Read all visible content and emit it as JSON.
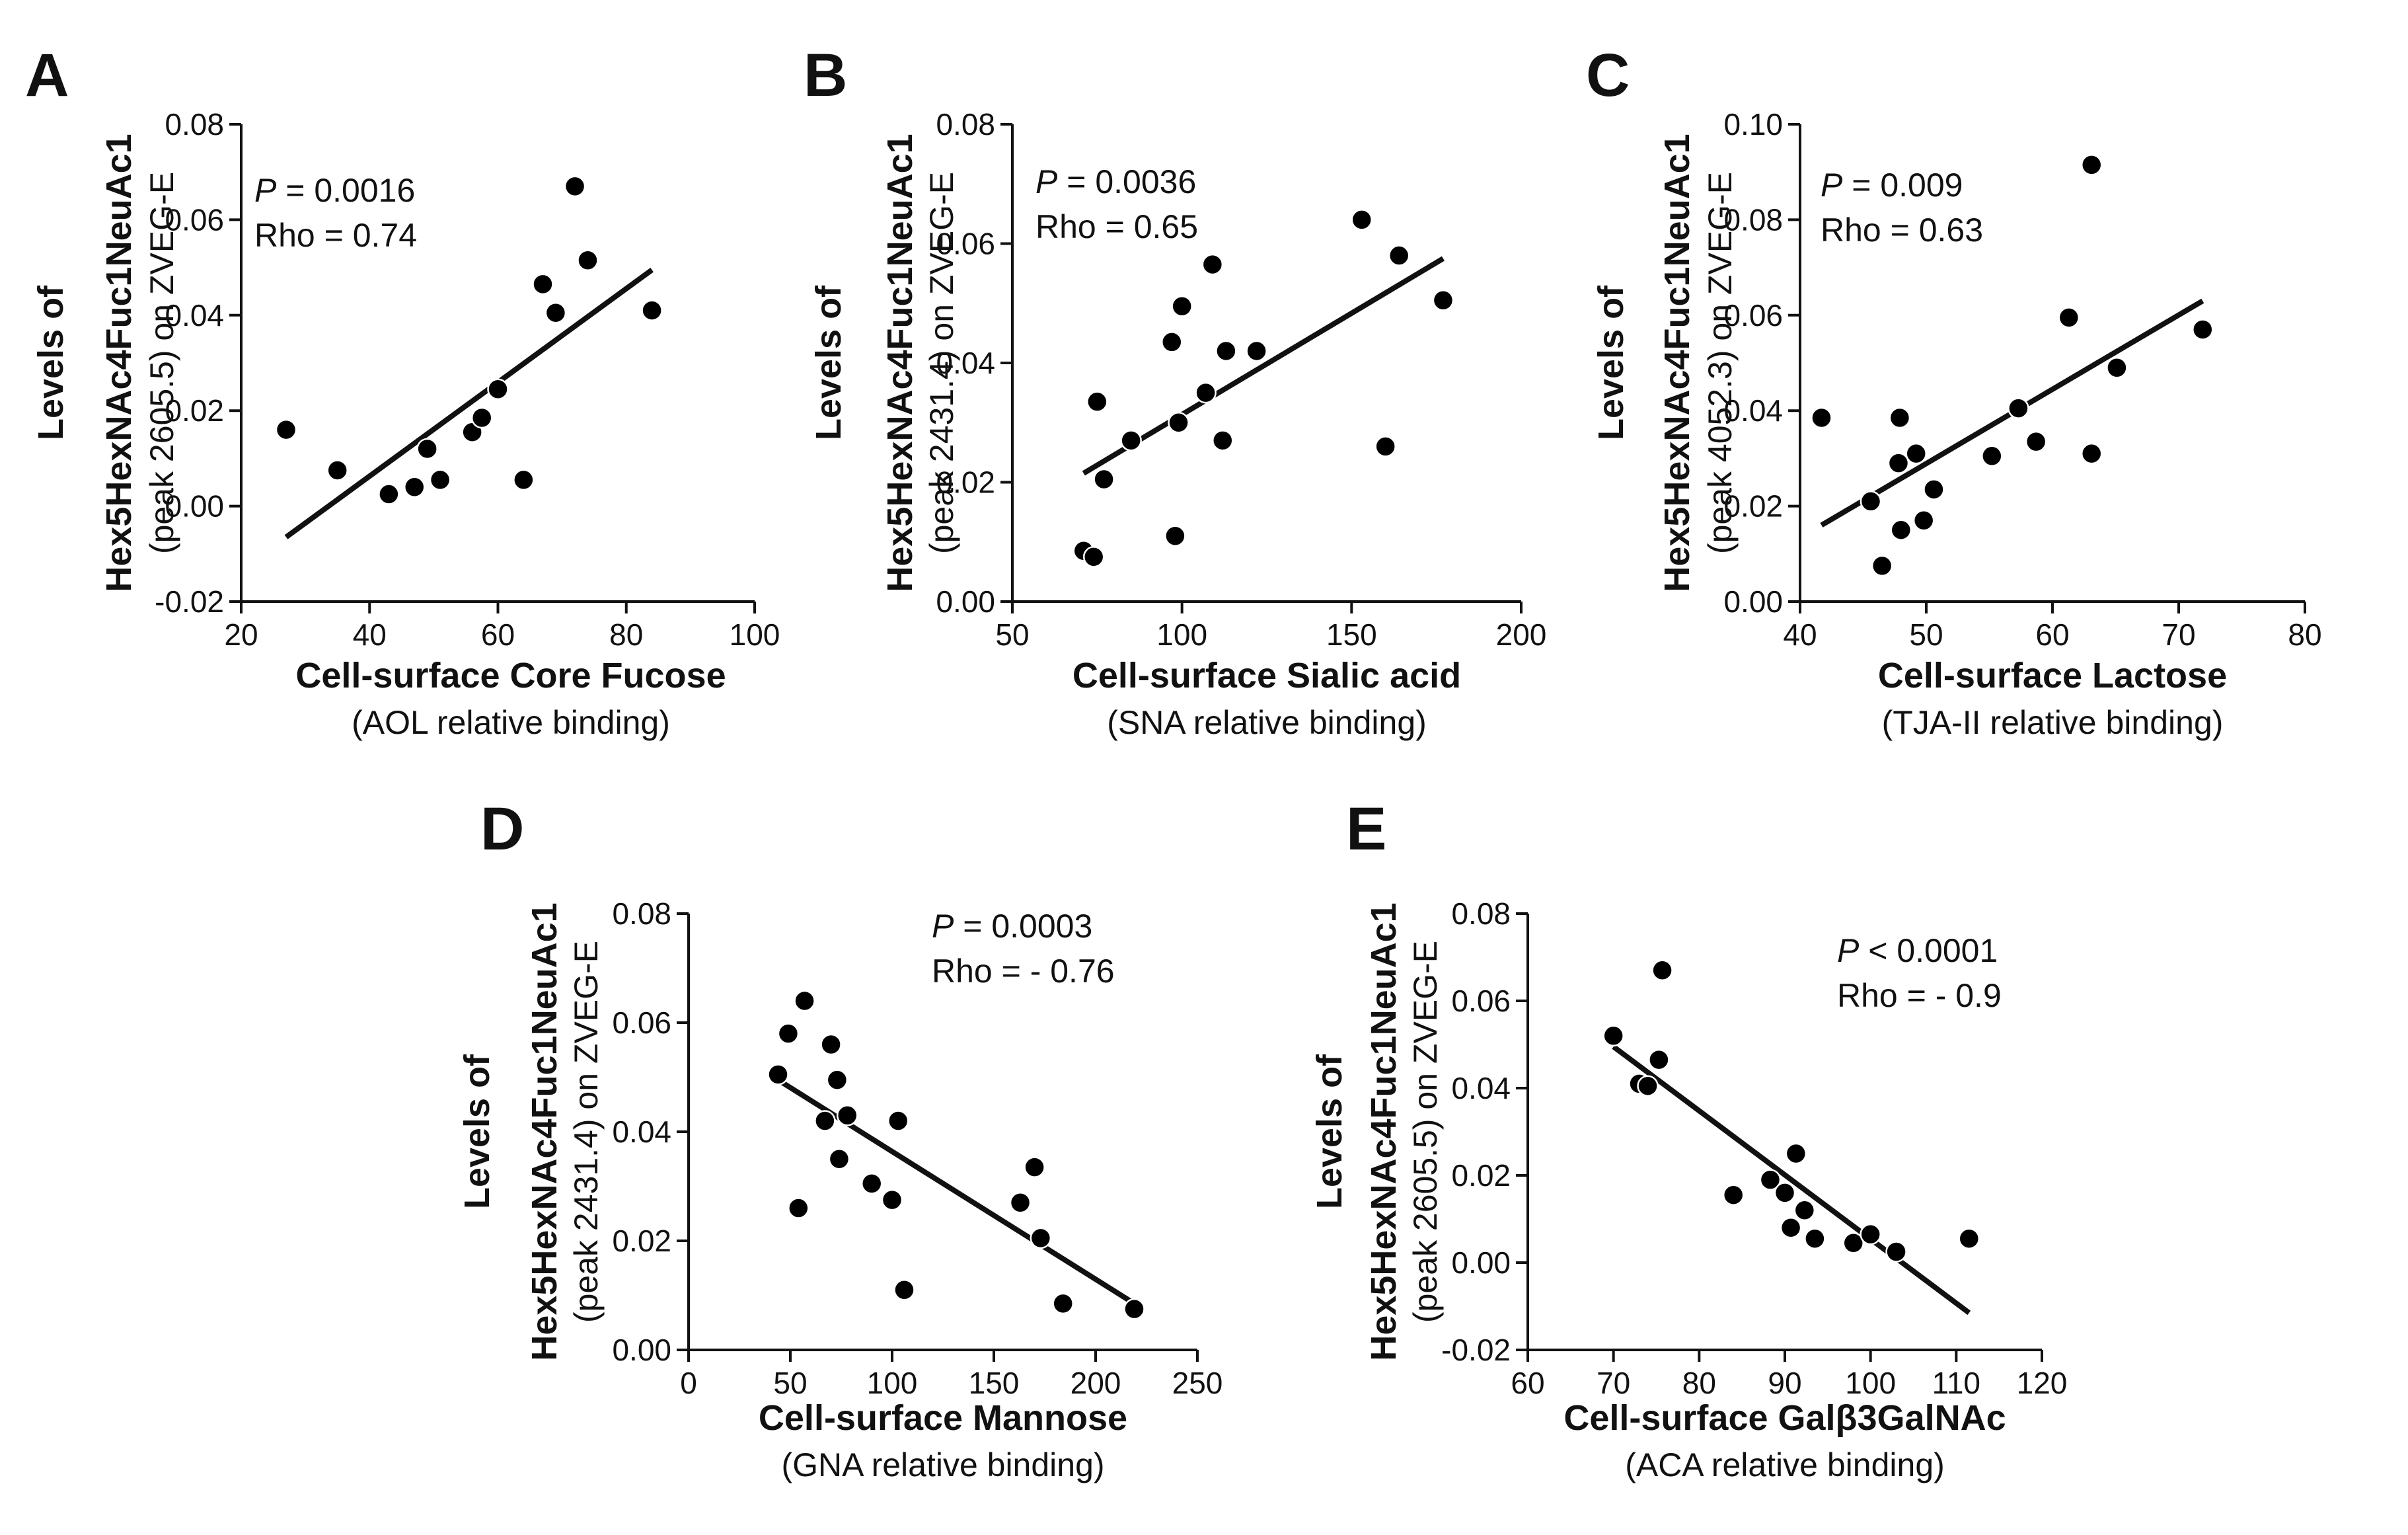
{
  "colors": {
    "ink": "#111111",
    "point": "#000000",
    "background": "#ffffff"
  },
  "chart_data": [
    {
      "type": "scatter",
      "panel": "A",
      "p_prefix": "P",
      "p_text": " = 0.0016",
      "rho_text": "Rho = 0.74",
      "xlabel": "Cell-surface Core Fucose",
      "xsublabel": "(AOL relative binding)",
      "ylabel_lines": [
        "Levels of",
        "Hex5HexNAc4Fuc1NeuAc1",
        "(peak 2605.5) on ZVEG-E"
      ],
      "xlim": [
        20,
        100
      ],
      "ylim": [
        -0.02,
        0.08
      ],
      "xticks": [
        20,
        40,
        60,
        80,
        100
      ],
      "yticks": [
        -0.02,
        0.0,
        0.02,
        0.04,
        0.06,
        0.08
      ],
      "ytick_labels": [
        "-0.02",
        "0.00",
        "0.02",
        "0.04",
        "0.06",
        "0.08"
      ],
      "x": [
        27,
        35,
        43,
        47,
        49,
        51,
        56,
        57.5,
        60,
        64,
        67,
        69,
        72,
        74,
        84
      ],
      "y": [
        0.016,
        0.0075,
        0.0025,
        0.004,
        0.012,
        0.0055,
        0.0155,
        0.0185,
        0.0245,
        0.0055,
        0.0465,
        0.0405,
        0.067,
        0.0515,
        0.041
      ],
      "fit": {
        "x": [
          27,
          84
        ],
        "y": [
          -0.0065,
          0.0495
        ]
      }
    },
    {
      "type": "scatter",
      "panel": "B",
      "p_prefix": "P",
      "p_text": " = 0.0036",
      "rho_text": "Rho = 0.65",
      "xlabel": "Cell-surface Sialic acid",
      "xsublabel": "(SNA relative binding)",
      "ylabel_lines": [
        "Levels of",
        "Hex5HexNAc4Fuc1NeuAc1",
        "(peak 2431.4) on ZVEG-E"
      ],
      "xlim": [
        50,
        200
      ],
      "ylim": [
        0.0,
        0.08
      ],
      "xticks": [
        50,
        100,
        150,
        200
      ],
      "yticks": [
        0.0,
        0.02,
        0.04,
        0.06,
        0.08
      ],
      "ytick_labels": [
        "0.00",
        "0.02",
        "0.04",
        "0.06",
        "0.08"
      ],
      "x": [
        71,
        74,
        75,
        77,
        85,
        97,
        98,
        99,
        100,
        107,
        109,
        113,
        112,
        122,
        153,
        160,
        164,
        177
      ],
      "y": [
        0.0085,
        0.0075,
        0.0335,
        0.0205,
        0.027,
        0.0435,
        0.011,
        0.03,
        0.0495,
        0.035,
        0.0565,
        0.042,
        0.027,
        0.042,
        0.064,
        0.026,
        0.058,
        0.0505
      ],
      "fit": {
        "x": [
          71,
          177
        ],
        "y": [
          0.0215,
          0.0575
        ]
      }
    },
    {
      "type": "scatter",
      "panel": "C",
      "p_prefix": "P",
      "p_text": " = 0.009",
      "rho_text": "Rho = 0.63",
      "xlabel": "Cell-surface Lactose",
      "xsublabel": "(TJA-II relative binding)",
      "ylabel_lines": [
        "Levels of",
        "Hex5HexNAc4Fuc1NeuAc1",
        "(peak 4052.3) on ZVEG-E"
      ],
      "xlim": [
        40,
        80
      ],
      "ylim": [
        0.0,
        0.1
      ],
      "xticks": [
        40,
        50,
        60,
        70,
        80
      ],
      "yticks": [
        0.0,
        0.02,
        0.04,
        0.06,
        0.08,
        0.1
      ],
      "ytick_labels": [
        "0.00",
        "0.02",
        "0.04",
        "0.06",
        "0.08",
        "0.10"
      ],
      "x": [
        41.7,
        45.6,
        46.5,
        47.8,
        47.9,
        48,
        49.2,
        49.8,
        50.6,
        55.2,
        57.3,
        58.7,
        61.3,
        63.1,
        63.1,
        65.1,
        71.9
      ],
      "y": [
        0.0385,
        0.021,
        0.0075,
        0.029,
        0.0385,
        0.015,
        0.031,
        0.017,
        0.0235,
        0.0305,
        0.0405,
        0.0335,
        0.0595,
        0.031,
        0.0915,
        0.049,
        0.057
      ],
      "fit": {
        "x": [
          41.7,
          71.9
        ],
        "y": [
          0.016,
          0.063
        ]
      }
    },
    {
      "type": "scatter",
      "panel": "D",
      "p_prefix": "P",
      "p_text": " = 0.0003",
      "rho_text": "Rho = - 0.76",
      "xlabel": "Cell-surface Mannose",
      "xsublabel": "(GNA relative binding)",
      "ylabel_lines": [
        "Levels of",
        "Hex5HexNAc4Fuc1NeuAc1",
        "(peak 2431.4) on ZVEG-E"
      ],
      "xlim": [
        0,
        250
      ],
      "ylim": [
        0.0,
        0.08
      ],
      "xticks": [
        0,
        50,
        100,
        150,
        200,
        250
      ],
      "yticks": [
        0.0,
        0.02,
        0.04,
        0.06,
        0.08
      ],
      "ytick_labels": [
        "0.00",
        "0.02",
        "0.04",
        "0.06",
        "0.08"
      ],
      "x": [
        44,
        49,
        54,
        57,
        67,
        70,
        73,
        74,
        78,
        90,
        100,
        103,
        106,
        163,
        170,
        173,
        184,
        219
      ],
      "y": [
        0.0505,
        0.058,
        0.026,
        0.064,
        0.042,
        0.056,
        0.0495,
        0.035,
        0.043,
        0.0305,
        0.0275,
        0.042,
        0.011,
        0.027,
        0.0335,
        0.0205,
        0.0085,
        0.0075
      ],
      "fit": {
        "x": [
          44,
          219
        ],
        "y": [
          0.0495,
          0.0085
        ]
      }
    },
    {
      "type": "scatter",
      "panel": "E",
      "p_prefix": "P",
      "p_text": " < 0.0001",
      "rho_text": "Rho = - 0.9",
      "xlabel": "Cell-surface Galβ3GalNAc",
      "xsublabel": "(ACA relative binding)",
      "ylabel_lines": [
        "Levels of",
        "Hex5HexNAc4Fuc1NeuAc1",
        "(peak 2605.5) on ZVEG-E"
      ],
      "xlim": [
        60,
        120
      ],
      "ylim": [
        -0.02,
        0.08
      ],
      "xticks": [
        60,
        70,
        80,
        90,
        100,
        110,
        120
      ],
      "yticks": [
        -0.02,
        0.0,
        0.02,
        0.04,
        0.06,
        0.08
      ],
      "ytick_labels": [
        "-0.02",
        "0.00",
        "0.02",
        "0.04",
        "0.06",
        "0.08"
      ],
      "x": [
        70,
        73,
        74,
        75.3,
        75.7,
        84,
        88.3,
        90,
        90.7,
        91.3,
        92.3,
        93.5,
        98,
        100,
        103,
        111.5
      ],
      "y": [
        0.052,
        0.041,
        0.0405,
        0.0465,
        0.067,
        0.0155,
        0.019,
        0.016,
        0.008,
        0.025,
        0.012,
        0.0055,
        0.0045,
        0.0065,
        0.0025,
        0.0055
      ],
      "fit": {
        "x": [
          70,
          111.5
        ],
        "y": [
          0.0495,
          -0.0115
        ]
      }
    }
  ]
}
